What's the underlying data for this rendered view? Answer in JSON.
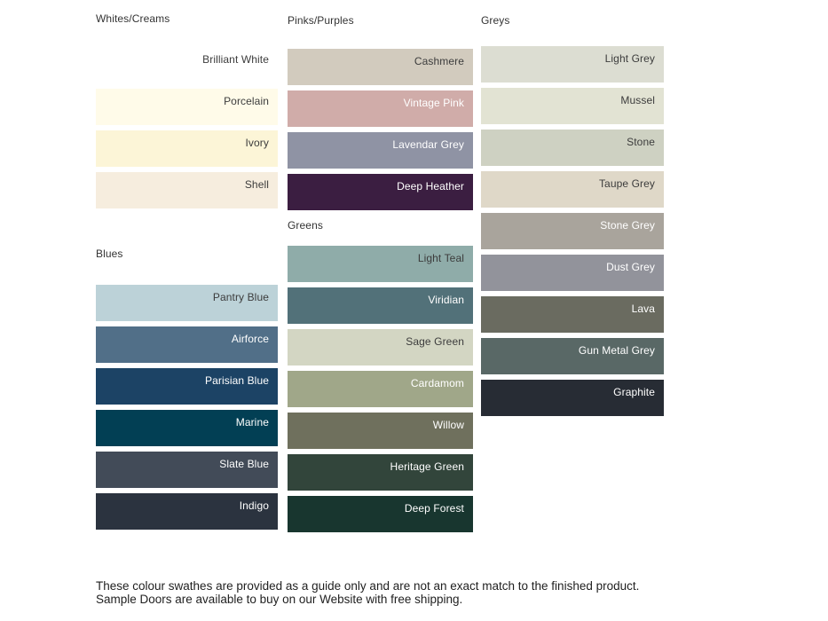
{
  "sections": [
    {
      "id": "whites-creams",
      "label": "Whites/Creams",
      "column": 1,
      "swatches": [
        {
          "name": "Brilliant White",
          "color": "#FFFFFF",
          "label_color": "#3C3C3C"
        },
        {
          "name": "Porcelain",
          "color": "#FFFBE9",
          "label_color": "#3C3C3C"
        },
        {
          "name": "Ivory",
          "color": "#FCF5D7",
          "label_color": "#3C3C3C"
        },
        {
          "name": "Shell",
          "color": "#F6EDDE",
          "label_color": "#3C3C3C"
        }
      ]
    },
    {
      "id": "blues",
      "label": "Blues",
      "column": 1,
      "swatches": [
        {
          "name": "Pantry Blue",
          "color": "#BCD2D8",
          "label_color": "#3C3C3C"
        },
        {
          "name": "Airforce",
          "color": "#516F88",
          "label_color": "#FFFFFF"
        },
        {
          "name": "Parisian Blue",
          "color": "#1C4365",
          "label_color": "#FFFFFF"
        },
        {
          "name": "Marine",
          "color": "#023F54",
          "label_color": "#FFFFFF"
        },
        {
          "name": "Slate Blue",
          "color": "#424B58",
          "label_color": "#FFFFFF"
        },
        {
          "name": "Indigo",
          "color": "#2B333F",
          "label_color": "#FFFFFF"
        }
      ]
    },
    {
      "id": "pinks-purples",
      "label": "Pinks/Purples",
      "column": 2,
      "swatches": [
        {
          "name": "Cashmere",
          "color": "#D2CBBE",
          "label_color": "#3C3C3C"
        },
        {
          "name": "Vintage Pink",
          "color": "#D0ACA9",
          "label_color": "#FFFFFF"
        },
        {
          "name": "Lavendar Grey",
          "color": "#8F93A4",
          "label_color": "#FFFFFF"
        },
        {
          "name": "Deep Heather",
          "color": "#3B1E41",
          "label_color": "#FFFFFF"
        }
      ]
    },
    {
      "id": "greens",
      "label": "Greens",
      "column": 2,
      "swatches": [
        {
          "name": "Light Teal",
          "color": "#8FACA9",
          "label_color": "#3C3C3C"
        },
        {
          "name": "Viridian",
          "color": "#527179",
          "label_color": "#FFFFFF"
        },
        {
          "name": "Sage Green",
          "color": "#D3D6C3",
          "label_color": "#3C3C3C"
        },
        {
          "name": "Cardamom",
          "color": "#A0A789",
          "label_color": "#FFFFFF"
        },
        {
          "name": "Willow",
          "color": "#6F705D",
          "label_color": "#FFFFFF"
        },
        {
          "name": "Heritage Green",
          "color": "#32453B",
          "label_color": "#FFFFFF"
        },
        {
          "name": "Deep Forest",
          "color": "#18362F",
          "label_color": "#FFFFFF"
        }
      ]
    },
    {
      "id": "greys",
      "label": "Greys",
      "column": 3,
      "swatches": [
        {
          "name": "Light Grey",
          "color": "#DCDDD2",
          "label_color": "#3C3C3C"
        },
        {
          "name": "Mussel",
          "color": "#E2E3D3",
          "label_color": "#3C3C3C"
        },
        {
          "name": "Stone",
          "color": "#CED1C2",
          "label_color": "#3C3C3C"
        },
        {
          "name": "Taupe Grey",
          "color": "#DFD8C8",
          "label_color": "#3C3C3C"
        },
        {
          "name": "Stone Grey",
          "color": "#A9A49C",
          "label_color": "#FFFFFF"
        },
        {
          "name": "Dust Grey",
          "color": "#92939B",
          "label_color": "#FFFFFF"
        },
        {
          "name": "Lava",
          "color": "#6A6B60",
          "label_color": "#FFFFFF"
        },
        {
          "name": "Gun Metal Grey",
          "color": "#596866",
          "label_color": "#FFFFFF"
        },
        {
          "name": "Graphite",
          "color": "#272C34",
          "label_color": "#FFFFFF"
        }
      ]
    }
  ],
  "footer": {
    "text": "These colour swathes are provided as a guide only and are not an exact match to the finished product.  Sample Doors are available to buy on our Website with free shipping."
  }
}
